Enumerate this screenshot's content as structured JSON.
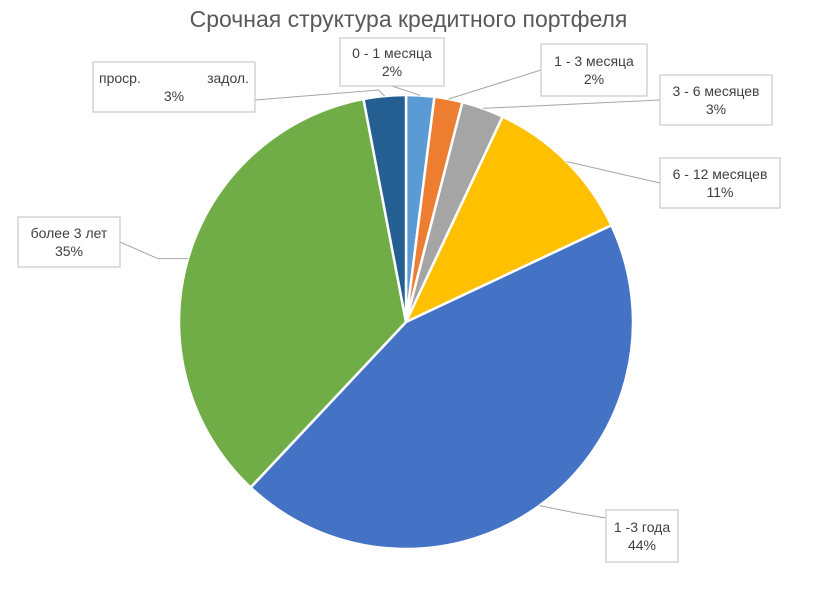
{
  "chart_data": {
    "type": "pie",
    "title": "Срочная структура кредитного портфеля",
    "slices": [
      {
        "name": "0 - 1 месяца",
        "value": 2,
        "label": "2%",
        "color": "#5B9BD5"
      },
      {
        "name": "1 - 3 месяца",
        "value": 2,
        "label": "2%",
        "color": "#ED7D31"
      },
      {
        "name": "3 - 6 месяцев",
        "value": 3,
        "label": "3%",
        "color": "#A5A5A5"
      },
      {
        "name": "6 - 12 месяцев",
        "value": 11,
        "label": "11%",
        "color": "#FFC000"
      },
      {
        "name": "1 -3 года",
        "value": 44,
        "label": "44%",
        "color": "#4472C4"
      },
      {
        "name": "более 3 лет",
        "value": 35,
        "label": "35%",
        "color": "#70AD47"
      },
      {
        "name_parts": [
          "проср.",
          "задол."
        ],
        "value": 3,
        "label": "3%",
        "color": "#255E91"
      }
    ],
    "legend": "none",
    "data_labels": "callouts"
  }
}
